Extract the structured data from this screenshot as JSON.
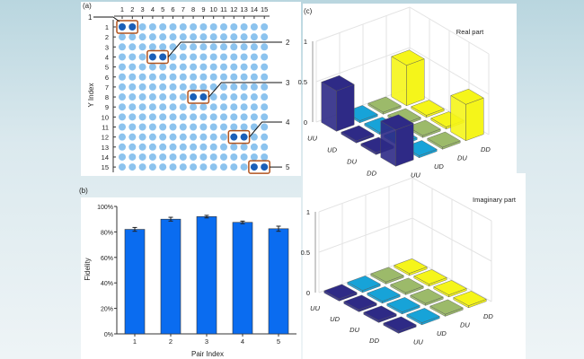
{
  "panel_labels": {
    "a": "(a)",
    "b": "(b)",
    "c": "(c)"
  },
  "lattice": {
    "ylabel": "Y Index",
    "columns": [
      "1",
      "2",
      "3",
      "4",
      "5",
      "6",
      "7",
      "8",
      "9",
      "10",
      "11",
      "12",
      "13",
      "14",
      "15"
    ],
    "rows": [
      "1",
      "2",
      "3",
      "4",
      "5",
      "6",
      "7",
      "8",
      "9",
      "10",
      "11",
      "12",
      "13",
      "14",
      "15"
    ],
    "pairs": [
      {
        "label": "1",
        "row": 1,
        "cols": [
          1,
          2
        ]
      },
      {
        "label": "2",
        "row": 4,
        "cols": [
          4,
          5
        ]
      },
      {
        "label": "3",
        "row": 8,
        "cols": [
          8,
          9
        ]
      },
      {
        "label": "4",
        "row": 12,
        "cols": [
          12,
          13
        ]
      },
      {
        "label": "5",
        "row": 15,
        "cols": [
          14,
          15
        ]
      }
    ],
    "colors": {
      "atom": "#8cc3ee",
      "highlight": "#1a5fb8",
      "box": "#b0531e"
    }
  },
  "chart_data": [
    {
      "type": "bar",
      "title": "",
      "xlabel": "Pair Index",
      "ylabel": "Fidelity",
      "categories": [
        "1",
        "2",
        "3",
        "4",
        "5"
      ],
      "values": [
        82,
        90,
        92,
        87.5,
        82.5
      ],
      "errors": [
        1.5,
        1.5,
        1,
        1,
        2
      ],
      "ylim": [
        0,
        100
      ],
      "yticks": [
        "0%",
        "20%",
        "40%",
        "60%",
        "80%",
        "100%"
      ],
      "color": "#0a6cf0",
      "grid": false
    },
    {
      "type": "bar3d",
      "title": "Real part",
      "rows": [
        "UU",
        "UD",
        "DU",
        "DD"
      ],
      "cols": [
        "UU",
        "UD",
        "DU",
        "DD"
      ],
      "values": [
        [
          0.5,
          0,
          0,
          0.5
        ],
        [
          0,
          0,
          0,
          0
        ],
        [
          0,
          0,
          0,
          0
        ],
        [
          0.45,
          0,
          0,
          0.45
        ]
      ],
      "zticks": [
        "0",
        "0.5",
        "1"
      ],
      "zlim": [
        0,
        1
      ],
      "col_colors": [
        "#2e2a86",
        "#17a3d8",
        "#9cba6a",
        "#f5f51a"
      ]
    },
    {
      "type": "bar3d",
      "title": "Imaginary part",
      "rows": [
        "UU",
        "UD",
        "DU",
        "DD"
      ],
      "cols": [
        "UU",
        "UD",
        "DU",
        "DD"
      ],
      "values": [
        [
          0,
          0,
          0,
          0
        ],
        [
          0,
          0,
          0,
          0
        ],
        [
          0,
          0,
          0,
          0
        ],
        [
          0,
          0,
          0,
          0
        ]
      ],
      "zticks": [
        "0",
        "0.5",
        "1"
      ],
      "zlim": [
        0,
        1
      ],
      "col_colors": [
        "#2e2a86",
        "#17a3d8",
        "#9cba6a",
        "#f5f51a"
      ]
    }
  ]
}
